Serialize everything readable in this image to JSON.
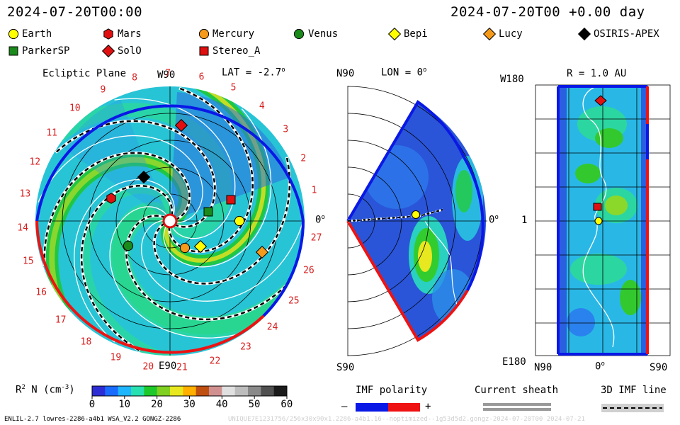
{
  "header": {
    "start_time": "2024-07-20T00:00",
    "current_time": "2024-07-20T00 +0.00 day"
  },
  "legend_markers": [
    {
      "label": "Earth",
      "shape": "circle",
      "color": "#ffff00"
    },
    {
      "label": "Mars",
      "shape": "hexagon",
      "color": "#e01010"
    },
    {
      "label": "Mercury",
      "shape": "circle",
      "color": "#f59a1a"
    },
    {
      "label": "Venus",
      "shape": "circle",
      "color": "#1a8a1a"
    },
    {
      "label": "Bepi",
      "shape": "diamond",
      "color": "#ffff00"
    },
    {
      "label": "Lucy",
      "shape": "diamond",
      "color": "#f59a1a"
    },
    {
      "label": "OSIRIS-APEX",
      "shape": "diamond",
      "color": "#000000"
    },
    {
      "label": "ParkerSP",
      "shape": "square",
      "color": "#1a8a1a"
    },
    {
      "label": "SolO",
      "shape": "diamond",
      "color": "#e01010"
    },
    {
      "label": "Stereo_A",
      "shape": "square",
      "color": "#e01010"
    }
  ],
  "ecliptic_panel": {
    "title": "Ecliptic Plane",
    "lat_label": "LAT = -2.7",
    "top_label": "W90",
    "bottom_label": "E90",
    "right_label": "0",
    "rotation_labels": [
      "1",
      "2",
      "3",
      "4",
      "5",
      "6",
      "7",
      "8",
      "9",
      "10",
      "11",
      "12",
      "13",
      "14",
      "15",
      "16",
      "17",
      "18",
      "19",
      "20",
      "21",
      "22",
      "23",
      "24",
      "25",
      "26",
      "27"
    ]
  },
  "meridional_panel": {
    "lon_label": "LON = 0",
    "top_label": "N90",
    "bottom_label": "S90",
    "right_label": "0"
  },
  "radial_panel": {
    "title": "R = 1.0 AU",
    "top_left": "W180",
    "mid_left": "1",
    "bottom_left": "E180",
    "x_labels": [
      "N90",
      "0",
      "S90"
    ]
  },
  "colorbar": {
    "title": "R",
    "title_sup": "2",
    "title_rest": " N (cm",
    "title_exp": "-3",
    "title_end": ")",
    "ticks": [
      "0",
      "10",
      "20",
      "30",
      "40",
      "50",
      "60"
    ],
    "colors": [
      "#2d2dd6",
      "#1a6cff",
      "#1fb6ff",
      "#28e0b0",
      "#1ec82a",
      "#7fd020",
      "#e8e820",
      "#ffb000",
      "#c05010",
      "#d09090",
      "#e0e0e0",
      "#bdbdbd",
      "#8a8a8a",
      "#505050",
      "#1a1a1a"
    ]
  },
  "imf_polarity": {
    "title": "IMF polarity",
    "minus": "–",
    "plus": "+",
    "neg_color": "#0a18e6",
    "pos_color": "#ee1212"
  },
  "current_sheath": {
    "title": "Current sheath"
  },
  "imf_line": {
    "title": "3D IMF line"
  },
  "footer": {
    "left": "ENLIL-2.7 lowres-2286-a4b1 WSA_V2.2 GONGZ-2286",
    "right": "UNIQUE7E1231756/256x30x90x1.2286-a4b1.16--noptimized--1g53d5d2.gongz-2024-07-20T00    2024-07-21"
  }
}
